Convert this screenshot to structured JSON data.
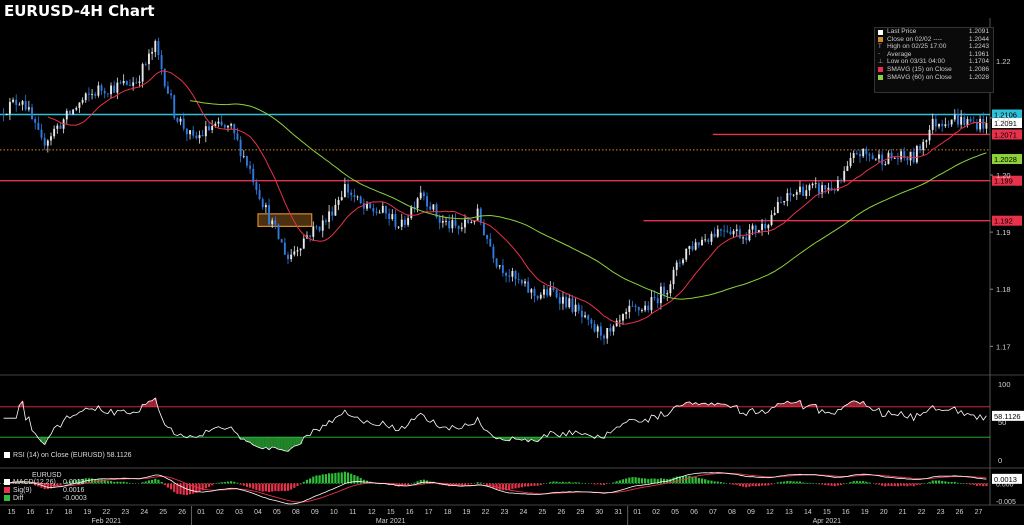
{
  "title": "EURUSD-4H Chart",
  "legend": {
    "rows": [
      {
        "label": "Last Price",
        "value": "1.2091",
        "color": "#ffffff"
      },
      {
        "label": "Close on 02/02 ----",
        "value": "1.2044",
        "color": "#d58a2d"
      },
      {
        "label": "High on 02/25 17:00",
        "value": "1.2243",
        "color": "",
        "icon": "T"
      },
      {
        "label": "Average",
        "value": "1.1961",
        "color": "",
        "icon": "-"
      },
      {
        "label": "Low on 03/31 04:00",
        "value": "1.1704",
        "color": "",
        "icon": "⊥"
      },
      {
        "label": "SMAVG (15) on Close",
        "value": "1.2086",
        "color": "#e8314a"
      },
      {
        "label": "SMAVG (60) on Close",
        "value": "1.2028",
        "color": "#8fd13a"
      }
    ]
  },
  "price_badges": [
    {
      "text": "1.2106",
      "price": 1.2106,
      "bg": "#2ec0d6",
      "fg": "#000000"
    },
    {
      "text": "1.2091",
      "price": 1.2091,
      "bg": "#ffffff",
      "fg": "#000000"
    },
    {
      "text": "1.2071",
      "price": 1.2071,
      "bg": "#e8314a",
      "fg": "#000000"
    },
    {
      "text": "1.2028",
      "price": 1.2028,
      "bg": "#8fd13a",
      "fg": "#000000"
    },
    {
      "text": "1.199",
      "price": 1.199,
      "bg": "#e8314a",
      "fg": "#000000"
    },
    {
      "text": "1.192",
      "price": 1.192,
      "bg": "#e8314a",
      "fg": "#000000"
    }
  ],
  "horizontal_lines": [
    {
      "price": 1.2106,
      "color": "#2ec0d6",
      "style": "solid",
      "x_from": 0
    },
    {
      "price": 1.2071,
      "color": "#e8314a",
      "style": "solid",
      "x_from": 0.72
    },
    {
      "price": 1.2044,
      "color": "#d58a2d",
      "style": "dotted",
      "x_from": 0
    },
    {
      "price": 1.199,
      "color": "#e8314a",
      "style": "solid",
      "x_from": 0
    },
    {
      "price": 1.192,
      "color": "#e8314a",
      "style": "solid",
      "x_from": 0.65
    }
  ],
  "zone": {
    "from_session": 81,
    "to_session": 98,
    "low": 1.191,
    "high": 1.1932,
    "color": "#d58a2d"
  },
  "rsi_legend": {
    "label": "RSI (14)  on Close (EURUSD) 58.1126",
    "color": "#ffffff"
  },
  "rsi_badge": "58.1126",
  "macd_legend": {
    "title": "EURUSD",
    "rows": [
      {
        "label": "MACD(12,26)",
        "value": "0.0013",
        "color": "#ffffff"
      },
      {
        "label": "Sig(9)",
        "value": "0.0016",
        "color": "#e8314a"
      },
      {
        "label": "Diff",
        "value": "-0.0003",
        "color": "#2fbf3a"
      }
    ]
  },
  "macd_badge": "0.0013",
  "chart_data": {
    "type": "candlestick",
    "title": "EURUSD-4H Chart",
    "price_axis": {
      "ylim": [
        1.1655,
        1.2275
      ],
      "ticks": [
        "1.17",
        "1.18",
        "1.19",
        "1.20",
        "1.21",
        "1.22"
      ]
    },
    "rsi_axis": {
      "ylim": [
        -8,
        108
      ],
      "ticks": [
        "0",
        "50",
        "100"
      ],
      "levels": [
        30,
        70
      ]
    },
    "macd_axis": {
      "ylim": [
        -0.0058,
        0.0038
      ],
      "ticks": [
        "-0.005",
        "0.000"
      ]
    },
    "x_day_labels": [
      "15",
      "16",
      "17",
      "18",
      "19",
      "22",
      "23",
      "24",
      "25",
      "26",
      "01",
      "02",
      "03",
      "04",
      "05",
      "08",
      "09",
      "10",
      "11",
      "12",
      "15",
      "16",
      "17",
      "18",
      "19",
      "22",
      "23",
      "24",
      "25",
      "26",
      "29",
      "30",
      "31",
      "01",
      "02",
      "05",
      "06",
      "07",
      "08",
      "09",
      "12",
      "13",
      "14",
      "15",
      "16",
      "19",
      "20",
      "21",
      "22",
      "23",
      "26",
      "27"
    ],
    "month_labels": [
      {
        "label": "Feb 2021",
        "day_index": 5
      },
      {
        "label": "Mar 2021",
        "day_index": 20
      },
      {
        "label": "Apr 2021",
        "day_index": 43
      }
    ],
    "month_starts": [
      10,
      33
    ],
    "day_anchors": [
      {
        "day": "15 Feb",
        "price": 1.2115
      },
      {
        "day": "16 Feb",
        "price": 1.2135
      },
      {
        "day": "17 Feb",
        "price": 1.2055
      },
      {
        "day": "18 Feb",
        "price": 1.209
      },
      {
        "day": "19 Feb",
        "price": 1.2125
      },
      {
        "day": "22 Feb",
        "price": 1.215
      },
      {
        "day": "23 Feb",
        "price": 1.2155
      },
      {
        "day": "24 Feb",
        "price": 1.2165
      },
      {
        "day": "25 Feb",
        "price": 1.2225
      },
      {
        "day": "26 Feb",
        "price": 1.211
      },
      {
        "day": "01 Mar",
        "price": 1.206
      },
      {
        "day": "02 Mar",
        "price": 1.2085
      },
      {
        "day": "03 Mar",
        "price": 1.208
      },
      {
        "day": "04 Mar",
        "price": 1.201
      },
      {
        "day": "05 Mar",
        "price": 1.1925
      },
      {
        "day": "08 Mar",
        "price": 1.1855
      },
      {
        "day": "09 Mar",
        "price": 1.1895
      },
      {
        "day": "10 Mar",
        "price": 1.192
      },
      {
        "day": "11 Mar",
        "price": 1.198
      },
      {
        "day": "12 Mar",
        "price": 1.194
      },
      {
        "day": "15 Mar",
        "price": 1.1935
      },
      {
        "day": "16 Mar",
        "price": 1.191
      },
      {
        "day": "17 Mar",
        "price": 1.1975
      },
      {
        "day": "18 Mar",
        "price": 1.192
      },
      {
        "day": "19 Mar",
        "price": 1.1905
      },
      {
        "day": "22 Mar",
        "price": 1.193
      },
      {
        "day": "23 Mar",
        "price": 1.185
      },
      {
        "day": "24 Mar",
        "price": 1.1815
      },
      {
        "day": "25 Mar",
        "price": 1.179
      },
      {
        "day": "26 Mar",
        "price": 1.1795
      },
      {
        "day": "29 Mar",
        "price": 1.177
      },
      {
        "day": "30 Mar",
        "price": 1.173
      },
      {
        "day": "31 Mar",
        "price": 1.172
      },
      {
        "day": "01 Apr",
        "price": 1.176
      },
      {
        "day": "02 Apr",
        "price": 1.177
      },
      {
        "day": "05 Apr",
        "price": 1.1805
      },
      {
        "day": "06 Apr",
        "price": 1.187
      },
      {
        "day": "07 Apr",
        "price": 1.189
      },
      {
        "day": "08 Apr",
        "price": 1.191
      },
      {
        "day": "09 Apr",
        "price": 1.1895
      },
      {
        "day": "12 Apr",
        "price": 1.191
      },
      {
        "day": "13 Apr",
        "price": 1.195
      },
      {
        "day": "14 Apr",
        "price": 1.1975
      },
      {
        "day": "15 Apr",
        "price": 1.1975
      },
      {
        "day": "16 Apr",
        "price": 1.198
      },
      {
        "day": "19 Apr",
        "price": 1.204
      },
      {
        "day": "20 Apr",
        "price": 1.203
      },
      {
        "day": "21 Apr",
        "price": 1.203
      },
      {
        "day": "22 Apr",
        "price": 1.203
      },
      {
        "day": "23 Apr",
        "price": 1.209
      },
      {
        "day": "26 Apr",
        "price": 1.21
      },
      {
        "day": "27 Apr",
        "price": 1.2091
      }
    ],
    "sessions_per_day": 6,
    "series": [
      {
        "name": "EURUSD",
        "color": "#2f7be0"
      },
      {
        "name": "SMAVG (15) on Close",
        "color": "#e8314a",
        "period": 15
      },
      {
        "name": "SMAVG (60) on Close",
        "color": "#8fd13a",
        "period": 60
      },
      {
        "name": "RSI (14)",
        "color": "#ffffff"
      },
      {
        "name": "MACD(12,26)",
        "color": "#ffffff"
      },
      {
        "name": "Sig(9)",
        "color": "#e8314a"
      },
      {
        "name": "Diff",
        "color": "#2fbf3a"
      }
    ],
    "grid": false
  }
}
